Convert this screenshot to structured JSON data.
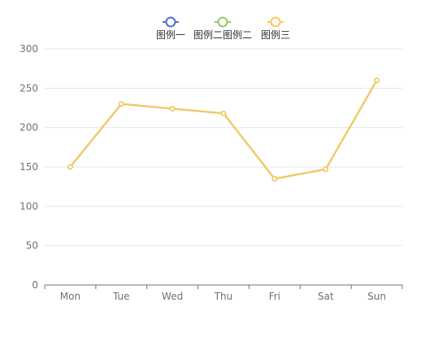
{
  "chart_data": {
    "type": "line",
    "categories": [
      "Mon",
      "Tue",
      "Wed",
      "Thu",
      "Fri",
      "Sat",
      "Sun"
    ],
    "series": [
      {
        "name": "图例一",
        "color": "#5470c6",
        "values": [
          150,
          230,
          224,
          218,
          135,
          147,
          260
        ]
      },
      {
        "name": "图例二图例二",
        "color": "#91cc75",
        "values": [
          150,
          230,
          224,
          218,
          135,
          147,
          260
        ]
      },
      {
        "name": "图例三",
        "color": "#fac858",
        "values": [
          150,
          230,
          224,
          218,
          135,
          147,
          260
        ]
      }
    ],
    "yticks": [
      "0",
      "50",
      "100",
      "150",
      "200",
      "250",
      "300"
    ],
    "ylim": [
      0,
      300
    ],
    "grid": true,
    "legend_position": "top-center"
  }
}
